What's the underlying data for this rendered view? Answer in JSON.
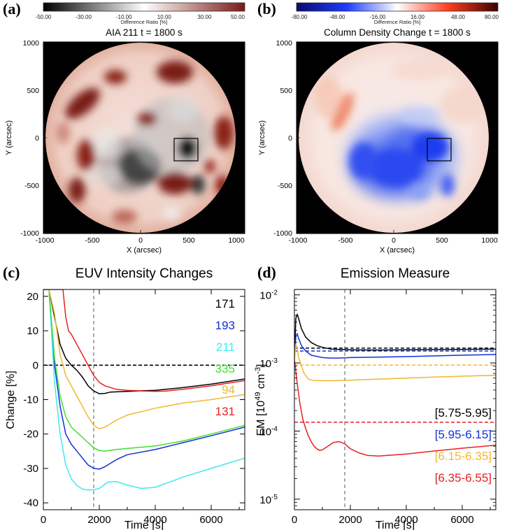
{
  "chart_data": [
    {
      "panel_label": "(a)",
      "type": "heatmap",
      "title": "AIA 211 t = 1800 s",
      "colorbar": {
        "label": "Difference Ratio [%]",
        "ticks": [
          "-50.00",
          "-30.00",
          "-10.00",
          "10.00",
          "30.00",
          "50.00"
        ],
        "range": [
          -50,
          50
        ],
        "colormap": [
          "#000000",
          "#ffffff",
          "#7a1a14"
        ]
      },
      "xlabel": "X (arcsec)",
      "ylabel": "Y (arcsec)",
      "xticks": [
        "-1000",
        "-500",
        "0",
        "500",
        "1000"
      ],
      "yticks": [
        "1000",
        "500",
        "0",
        "-500",
        "-1000"
      ],
      "xlim": [
        -1000,
        1000
      ],
      "ylim": [
        -1000,
        1000
      ],
      "box": {
        "x": [
          360,
          580
        ],
        "y": [
          -220,
          0
        ]
      }
    },
    {
      "panel_label": "(b)",
      "type": "heatmap",
      "title": "Column Density Change t = 1800 s",
      "colorbar": {
        "label": "Difference Ratio [%]",
        "ticks": [
          "-80.00",
          "-48.00",
          "-16.00",
          "16.00",
          "48.00",
          "80.00"
        ],
        "range": [
          -80,
          80
        ],
        "colormap": [
          "#0a0a6e",
          "#1e3cff",
          "#ffffff",
          "#ff4020",
          "#3c0000"
        ]
      },
      "xlabel": "X (arcsec)",
      "ylabel": "Y (arcsec)",
      "xticks": [
        "-1000",
        "-500",
        "0",
        "500",
        "1000"
      ],
      "yticks": [
        "1000",
        "500",
        "0",
        "-500",
        "-1000"
      ],
      "xlim": [
        -1000,
        1000
      ],
      "ylim": [
        -1000,
        1000
      ],
      "box": {
        "x": [
          360,
          580
        ],
        "y": [
          -220,
          0
        ]
      }
    },
    {
      "panel_label": "(c)",
      "type": "line",
      "title": "EUV Intensity Changes",
      "xlabel": "Time [s]",
      "ylabel": "Change [%]",
      "xlim": [
        0,
        7200
      ],
      "ylim": [
        -42,
        22
      ],
      "xticks": [
        "0",
        "2000",
        "4000",
        "6000"
      ],
      "yticks": [
        "20",
        "10",
        "0",
        "-10",
        "-20",
        "-30",
        "-40"
      ],
      "hline": 0,
      "vline": 1800,
      "series": [
        {
          "name": "171",
          "color": "#000000",
          "x": [
            0,
            200,
            400,
            600,
            800,
            1000,
            1200,
            1400,
            1600,
            1800,
            2000,
            2200,
            2400,
            3000,
            3600,
            4000,
            5000,
            6000,
            7200
          ],
          "y": [
            22,
            22,
            14,
            6,
            2,
            0,
            -1.5,
            -3.5,
            -6,
            -7.5,
            -8.3,
            -8.2,
            -7.8,
            -7.6,
            -7.4,
            -7.3,
            -6.5,
            -5.5,
            -4
          ]
        },
        {
          "name": "193",
          "color": "#1030d8",
          "x": [
            0,
            200,
            400,
            600,
            800,
            1000,
            1200,
            1400,
            1600,
            1800,
            2000,
            2200,
            2600,
            3000,
            4000,
            5000,
            6000,
            7200
          ],
          "y": [
            22,
            22,
            0,
            -12,
            -20,
            -23,
            -25,
            -27,
            -29,
            -30,
            -30.2,
            -29.5,
            -27.5,
            -26,
            -24.5,
            -22.5,
            -20.5,
            -18
          ]
        },
        {
          "name": "211",
          "color": "#40e8f0",
          "x": [
            0,
            200,
            400,
            600,
            800,
            1000,
            1200,
            1400,
            1600,
            1800,
            2000,
            2300,
            2600,
            3000,
            3500,
            4000,
            4500,
            5000,
            6000,
            7200
          ],
          "y": [
            22,
            22,
            -5,
            -20,
            -29,
            -33,
            -35,
            -36,
            -36.3,
            -36.2,
            -35.8,
            -34,
            -33.8,
            -34.8,
            -35.8,
            -35.5,
            -34,
            -32.5,
            -30,
            -27
          ]
        },
        {
          "name": "335",
          "color": "#40e030",
          "x": [
            0,
            200,
            400,
            600,
            800,
            1000,
            1200,
            1400,
            1600,
            1800,
            2000,
            2200,
            2600,
            3000,
            4000,
            5000,
            6000,
            7200
          ],
          "y": [
            22,
            22,
            2,
            -9,
            -15,
            -18,
            -19.5,
            -21,
            -22.5,
            -24,
            -24.8,
            -25,
            -24.5,
            -24.2,
            -23.5,
            -22,
            -20,
            -17.5
          ]
        },
        {
          "name": "94",
          "color": "#f0b830",
          "x": [
            0,
            200,
            400,
            600,
            800,
            1000,
            1200,
            1400,
            1600,
            1800,
            2000,
            2200,
            2400,
            2600,
            3000,
            4000,
            5000,
            6000,
            7200
          ],
          "y": [
            22,
            22,
            15,
            3,
            -3,
            -6,
            -9,
            -12,
            -15,
            -17.5,
            -18.5,
            -18,
            -17,
            -16,
            -14.5,
            -12.5,
            -11,
            -10,
            -8.5
          ]
        },
        {
          "name": "131",
          "color": "#e82020",
          "x": [
            0,
            200,
            500,
            700,
            800,
            900,
            1000,
            1200,
            1400,
            1600,
            1800,
            2000,
            2200,
            2400,
            2600,
            3000,
            3600,
            4000,
            4400,
            5000,
            6000,
            7200
          ],
          "y": [
            22,
            22,
            22,
            22,
            14,
            10,
            9,
            6,
            3,
            0,
            -3,
            -5,
            -6,
            -6.5,
            -7,
            -7.3,
            -7.5,
            -7.6,
            -7.5,
            -7,
            -6,
            -4.5
          ]
        }
      ]
    },
    {
      "panel_label": "(d)",
      "type": "line",
      "title": "Emission Measure",
      "xlabel": "Time [s]",
      "ylabel": "EM [10^49 cm^-3]",
      "yscale": "log",
      "xlim": [
        0,
        7200
      ],
      "ylim": [
        7e-06,
        0.012
      ],
      "xticks": [
        "0",
        "2000",
        "4000",
        "6000"
      ],
      "vline": 1800,
      "series": [
        {
          "name": "[5.75-5.95]",
          "color": "#000000",
          "baseline": 0.00165,
          "x": [
            0,
            50,
            100,
            150,
            250,
            400,
            600,
            800,
            1000,
            1300,
            1600,
            2000,
            3000,
            4000,
            5000,
            6000,
            7200
          ],
          "y": [
            0.0011,
            0.0045,
            0.0052,
            0.0045,
            0.0032,
            0.0024,
            0.002,
            0.0018,
            0.0017,
            0.0016,
            0.00158,
            0.00156,
            0.00155,
            0.00156,
            0.00157,
            0.00158,
            0.0016
          ]
        },
        {
          "name": "[5.95-6.15]",
          "color": "#1030d8",
          "baseline": 0.0015,
          "x": [
            0,
            50,
            100,
            150,
            250,
            400,
            600,
            800,
            1000,
            1300,
            1600,
            2000,
            3000,
            4000,
            5000,
            6000,
            7200
          ],
          "y": [
            0.0011,
            0.0024,
            0.0027,
            0.0023,
            0.0018,
            0.0015,
            0.0013,
            0.00125,
            0.0012,
            0.00118,
            0.00118,
            0.0012,
            0.00122,
            0.00124,
            0.00127,
            0.0013,
            0.00133
          ]
        },
        {
          "name": "[6.15-6.35]",
          "color": "#f0b830",
          "baseline": 0.00093,
          "x": [
            0,
            50,
            100,
            150,
            250,
            350,
            500,
            700,
            1000,
            1500,
            2000,
            3000,
            4000,
            5000,
            6000,
            7200
          ],
          "y": [
            0.0011,
            0.0019,
            0.0016,
            0.0012,
            0.0009,
            0.0007,
            0.00058,
            0.00055,
            0.00055,
            0.00055,
            0.00056,
            0.00058,
            0.0006,
            0.00062,
            0.00064,
            0.00066
          ]
        },
        {
          "name": "[6.35-6.55]",
          "color": "#e82020",
          "baseline": 0.000135,
          "x": [
            0,
            30,
            60,
            100,
            150,
            200,
            300,
            400,
            500,
            600,
            700,
            800,
            900,
            1000,
            1200,
            1400,
            1600,
            1800,
            2000,
            2300,
            2600,
            3000,
            4000,
            5000,
            6000,
            7200
          ],
          "y": [
            0.0011,
            0.0009,
            0.0007,
            0.0005,
            0.00035,
            0.00025,
            0.00015,
            0.00011,
            8.5e-05,
            7e-05,
            6e-05,
            5.5e-05,
            5.2e-05,
            5.3e-05,
            6e-05,
            6.8e-05,
            7e-05,
            6.5e-05,
            5.5e-05,
            4.8e-05,
            4.4e-05,
            4.3e-05,
            4.6e-05,
            5.1e-05,
            5.6e-05,
            6.2e-05
          ]
        }
      ]
    }
  ]
}
